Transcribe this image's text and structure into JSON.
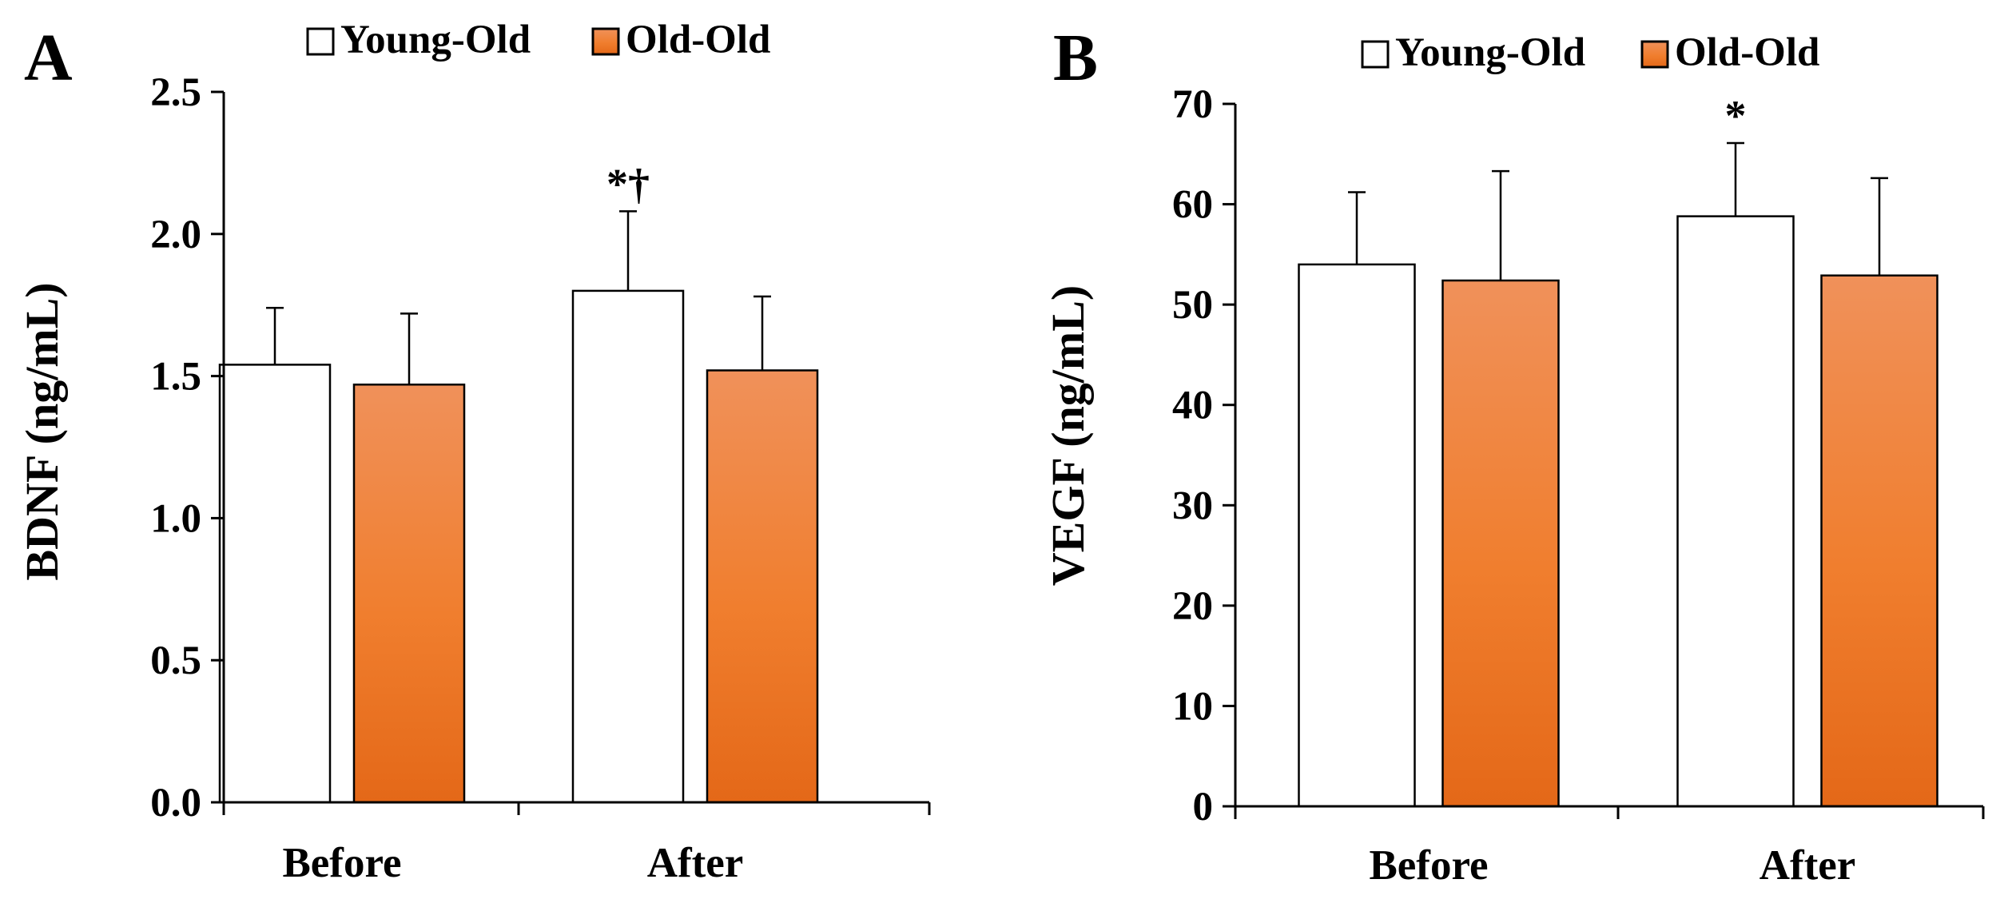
{
  "chart_data": [
    {
      "type": "bar",
      "panel": "A",
      "title": "",
      "xlabel": "",
      "ylabel": "BDNF (ng/mL)",
      "ylim": [
        0,
        2.5
      ],
      "ytick_values": [
        0,
        0.5,
        1.0,
        1.5,
        2.0,
        2.5
      ],
      "yticks": [
        "0.0",
        "0.5",
        "1.0",
        "1.5",
        "2.0",
        "2.5"
      ],
      "categories": [
        "Before",
        "After"
      ],
      "series": [
        {
          "name": "Young-Old",
          "values": [
            1.54,
            1.8
          ],
          "errors": [
            0.2,
            0.28
          ],
          "color": "#ffffff"
        },
        {
          "name": "Old-Old",
          "values": [
            1.47,
            1.52
          ],
          "errors": [
            0.25,
            0.26
          ],
          "color": "#ee7a2c"
        }
      ],
      "annotations": [
        {
          "category": "After",
          "series": "Young-Old",
          "text": "*†"
        }
      ],
      "legend": "top-center"
    },
    {
      "type": "bar",
      "panel": "B",
      "title": "",
      "xlabel": "",
      "ylabel": "VEGF (ng/mL)",
      "ylim": [
        0,
        70
      ],
      "ytick_values": [
        0,
        10,
        20,
        30,
        40,
        50,
        60,
        70
      ],
      "yticks": [
        "0",
        "10",
        "20",
        "30",
        "40",
        "50",
        "60",
        "70"
      ],
      "categories": [
        "Before",
        "After"
      ],
      "series": [
        {
          "name": "Young-Old",
          "values": [
            54.0,
            58.8
          ],
          "errors": [
            7.2,
            7.3
          ],
          "color": "#ffffff"
        },
        {
          "name": "Old-Old",
          "values": [
            52.4,
            52.9
          ],
          "errors": [
            10.9,
            9.7
          ],
          "color": "#ee7a2c"
        }
      ],
      "annotations": [
        {
          "category": "After",
          "series": "Young-Old",
          "text": "*"
        }
      ],
      "legend": "top-center"
    }
  ]
}
